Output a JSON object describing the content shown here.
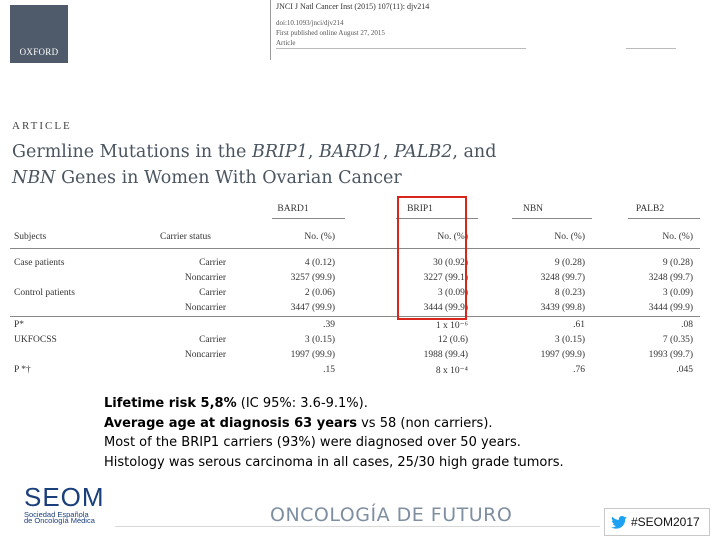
{
  "header": {
    "publisher": "OXFORD",
    "journal_ref": "JNCI J Natl Cancer Inst (2015) 107(11): djv214",
    "doi": "doi:10.1093/jnci/djv214",
    "published": "First published online August 27, 2015",
    "article_type": "Article"
  },
  "article_label": "ARTICLE",
  "title": {
    "part1": "Germline Mutations in the ",
    "gene1": "BRIP1",
    "sep1": ", ",
    "gene2": "BARD1",
    "sep2": ", ",
    "gene3": "PALB2",
    "part2": ", and",
    "gene4": "NBN",
    "part3": " Genes in Women With Ovarian Cancer"
  },
  "table": {
    "group_headers": [
      "BARD1",
      "BRIP1",
      "NBN",
      "PALB2"
    ],
    "col_subjects": "Subjects",
    "col_status": "Carrier status",
    "col_no": "No. (%)",
    "rows": [
      {
        "subject": "Case patients",
        "status": "Carrier",
        "values": [
          "4 (0.12)",
          "30 (0.92)",
          "9 (0.28)",
          "9 (0.28)"
        ]
      },
      {
        "subject": "",
        "status": "Noncarrier",
        "values": [
          "3257 (99.9)",
          "3227 (99.1)",
          "3248 (99.7)",
          "3248 (99.7)"
        ]
      },
      {
        "subject": "Control patients",
        "status": "Carrier",
        "values": [
          "2 (0.06)",
          "3 (0.09)",
          "8 (0.23)",
          "3 (0.09)"
        ]
      },
      {
        "subject": "",
        "status": "Noncarrier",
        "values": [
          "3447 (99.9)",
          "3444 (99.9)",
          "3439 (99.8)",
          "3444 (99.9)"
        ]
      },
      {
        "subject": "P*",
        "status": "",
        "values": [
          ".39",
          "1 x 10⁻⁶",
          ".61",
          ".08"
        ]
      },
      {
        "subject": "UKFOCSS",
        "status": "Carrier",
        "values": [
          "3 (0.15)",
          "12 (0.6)",
          "3 (0.15)",
          "7 (0.35)"
        ]
      },
      {
        "subject": "",
        "status": "Noncarrier",
        "values": [
          "1997 (99.9)",
          "1988 (99.4)",
          "1997 (99.9)",
          "1993 (99.7)"
        ]
      },
      {
        "subject": "P *†",
        "status": "",
        "values": [
          ".15",
          "8 x 10⁻⁴",
          ".76",
          ".045"
        ]
      }
    ]
  },
  "highlight_color": "#d9261c",
  "summary": {
    "l1_bold": "Lifetime risk 5,8%",
    "l1_rest": " (IC 95%: 3.6-9.1%).",
    "l2_bold": "Average age at diagnosis 63 years",
    "l2_rest": " vs 58 (non carriers).",
    "l3": "Most of the BRIP1 carriers  (93%) were diagnosed over 50 years.",
    "l4": "Histology was serous carcinoma in all cases, 25/30 high grade tumors."
  },
  "footer": {
    "seom": "SEOM",
    "seom_sub1": "Sociedad Española",
    "seom_sub2": "de Oncología Médica",
    "tagline": "ONCOLOGÍA DE FUTURO",
    "hashtag": "#SEOM2017",
    "hashtag_icon": "twitter-bird-icon",
    "brand_color": "#1a3f7a"
  }
}
